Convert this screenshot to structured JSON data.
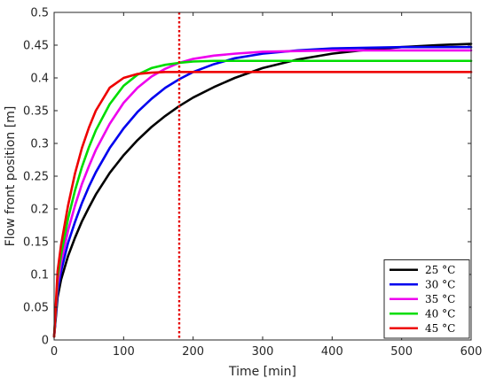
{
  "chart_data": {
    "type": "line",
    "xlabel": "Time [min]",
    "ylabel": "Flow front position [m]",
    "xlim": [
      0,
      600
    ],
    "ylim": [
      0,
      0.5
    ],
    "x_ticks": [
      0,
      100,
      200,
      300,
      400,
      500,
      600
    ],
    "y_ticks": [
      0,
      0.05,
      0.1,
      0.15,
      0.2,
      0.25,
      0.3,
      0.35,
      0.4,
      0.45,
      0.5
    ],
    "x_tick_labels": [
      "0",
      "100",
      "200",
      "300",
      "400",
      "500",
      "600"
    ],
    "y_tick_labels": [
      "0",
      "0.05",
      "0.1",
      "0.15",
      "0.2",
      "0.25",
      "0.3",
      "0.35",
      "0.4",
      "0.45",
      "0.5"
    ],
    "grid": false,
    "legend_position": "bottom-right",
    "vertical_marker": {
      "x": 180,
      "color": "#e60000",
      "style": "dotted"
    },
    "series": [
      {
        "name": "25 °C",
        "color": "#000000",
        "x": [
          0,
          5,
          10,
          20,
          30,
          40,
          50,
          60,
          80,
          100,
          120,
          140,
          160,
          180,
          200,
          230,
          260,
          300,
          350,
          400,
          450,
          500,
          550,
          600
        ],
        "y": [
          0.005,
          0.065,
          0.092,
          0.128,
          0.156,
          0.181,
          0.202,
          0.222,
          0.255,
          0.282,
          0.305,
          0.325,
          0.342,
          0.357,
          0.37,
          0.386,
          0.4,
          0.415,
          0.428,
          0.437,
          0.443,
          0.447,
          0.45,
          0.452
        ]
      },
      {
        "name": "30 °C",
        "color": "#0000ee",
        "x": [
          0,
          5,
          10,
          20,
          30,
          40,
          50,
          60,
          80,
          100,
          120,
          140,
          160,
          180,
          200,
          230,
          260,
          300,
          350,
          400,
          450,
          500,
          550,
          600
        ],
        "y": [
          0.005,
          0.075,
          0.105,
          0.148,
          0.18,
          0.209,
          0.234,
          0.256,
          0.293,
          0.323,
          0.348,
          0.368,
          0.385,
          0.398,
          0.409,
          0.421,
          0.43,
          0.437,
          0.442,
          0.445,
          0.446,
          0.447,
          0.447,
          0.447
        ]
      },
      {
        "name": "35 °C",
        "color": "#ee00ee",
        "x": [
          0,
          5,
          10,
          20,
          30,
          40,
          50,
          60,
          80,
          100,
          120,
          140,
          160,
          180,
          200,
          230,
          260,
          300,
          350,
          400,
          450,
          500,
          550,
          600
        ],
        "y": [
          0.005,
          0.085,
          0.118,
          0.167,
          0.205,
          0.238,
          0.265,
          0.29,
          0.33,
          0.362,
          0.385,
          0.402,
          0.414,
          0.423,
          0.429,
          0.434,
          0.437,
          0.44,
          0.441,
          0.442,
          0.442,
          0.442,
          0.442,
          0.442
        ]
      },
      {
        "name": "40 °C",
        "color": "#00dd00",
        "x": [
          0,
          5,
          10,
          20,
          30,
          40,
          50,
          60,
          80,
          100,
          120,
          140,
          160,
          180,
          200,
          230,
          260,
          300,
          350,
          400,
          450,
          500,
          550,
          600
        ],
        "y": [
          0.005,
          0.095,
          0.13,
          0.185,
          0.228,
          0.264,
          0.294,
          0.32,
          0.36,
          0.388,
          0.405,
          0.415,
          0.42,
          0.423,
          0.425,
          0.426,
          0.426,
          0.426,
          0.426,
          0.426,
          0.426,
          0.426,
          0.426,
          0.426
        ]
      },
      {
        "name": "45 °C",
        "color": "#ee0000",
        "x": [
          0,
          5,
          10,
          20,
          30,
          40,
          50,
          60,
          80,
          100,
          120,
          140,
          160,
          180,
          200,
          230,
          260,
          300,
          350,
          400,
          450,
          500,
          550,
          600
        ],
        "y": [
          0.005,
          0.105,
          0.145,
          0.205,
          0.254,
          0.293,
          0.324,
          0.35,
          0.385,
          0.4,
          0.406,
          0.408,
          0.409,
          0.409,
          0.409,
          0.409,
          0.409,
          0.409,
          0.409,
          0.409,
          0.409,
          0.409,
          0.409,
          0.409
        ]
      }
    ]
  }
}
